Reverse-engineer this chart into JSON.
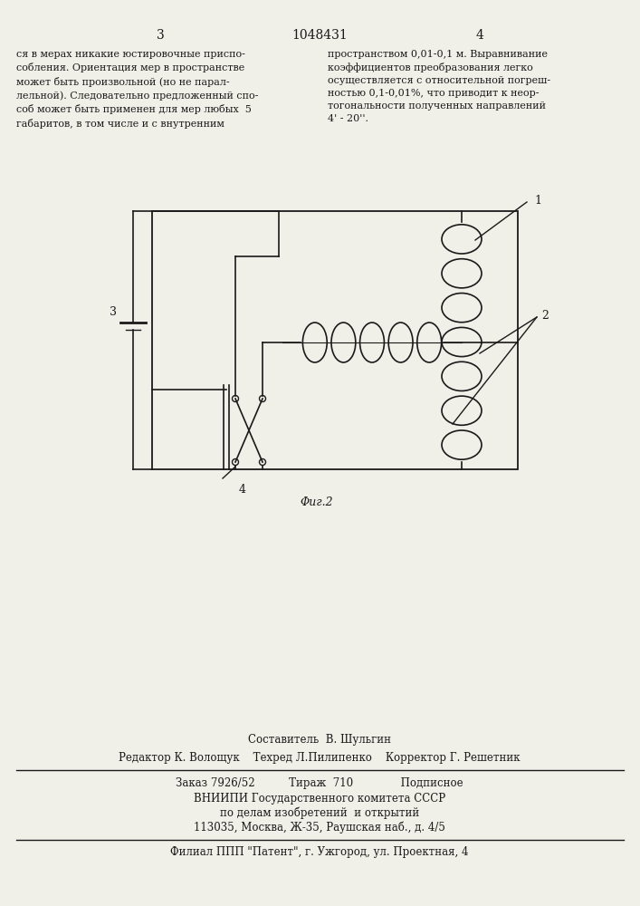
{
  "page_number_left": "3",
  "patent_number": "1048431",
  "page_number_right": "4",
  "text_left": "ся в мерах никакие юстировочные приспо-\nсобления. Ориентация мер в пространстве\nможет быть произвольной (но не парал-\nлельной). Следовательно предложенный спо-\nсоб может быть применен для мер любых  5\nгабаритов, в том числе и с внутренним",
  "text_right": "пространством 0,01-0,1 м. Выравнивание\nкоэффициентов преобразования легко\nосуществляется с относительной погреш-\nностью 0,1-0,01%, что приводит к неор-\nтогональности полученных направлений\n4' - 20''.",
  "fig_label": "Φиг.2",
  "label_1": "1",
  "label_2": "2",
  "label_3": "3",
  "label_4": "4",
  "footer_line1": "Составитель  В. Шульгин",
  "footer_line2": "Редактор К. Волощук    Техред Л.Пилипенко    Корректор Г. Решетник",
  "footer_line3": "Заказ 7926/52          Тираж  710              Подписное",
  "footer_line4": "ВНИИПИ Государственного комитета СССР",
  "footer_line5": "по делам изобретений  и открытий",
  "footer_line6": "113035, Москва, Ж-35, Раушская наб., д. 4/5",
  "footer_line7": "Филиал ППП \"Патент\", г. Ужгород, ул. Проектная, 4",
  "bg_color": "#f0efe8",
  "text_color": "#1a1a1a",
  "line_color": "#1a1a1a"
}
